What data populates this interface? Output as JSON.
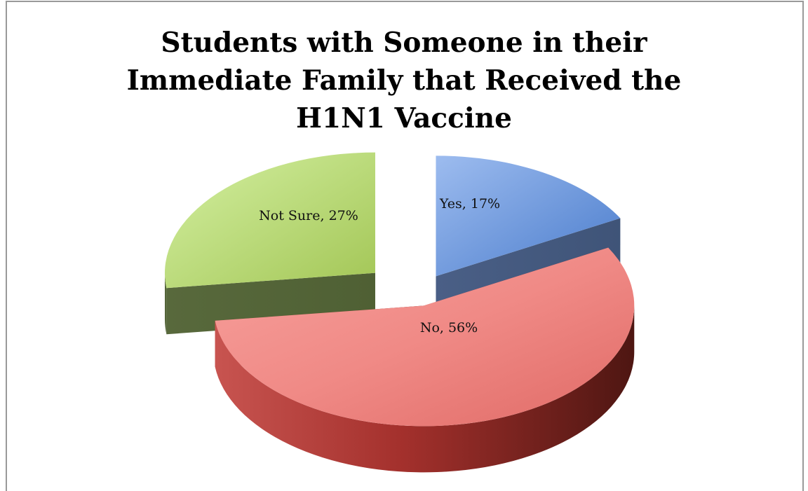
{
  "chart_data": {
    "type": "pie",
    "title_lines": [
      "Students with Someone in their",
      "Immediate Family that Received the",
      "H1N1 Vaccine"
    ],
    "categories": [
      "Yes",
      "No",
      "Not Sure"
    ],
    "values": [
      17,
      56,
      27
    ],
    "unit": "%",
    "labels": [
      "Yes, 17%",
      "No, 56%",
      "Not Sure, 27%"
    ],
    "colors": [
      "#5b86c9",
      "#e35f5c",
      "#a8c95a"
    ],
    "exploded": true,
    "three_d": true,
    "legend": "none"
  }
}
